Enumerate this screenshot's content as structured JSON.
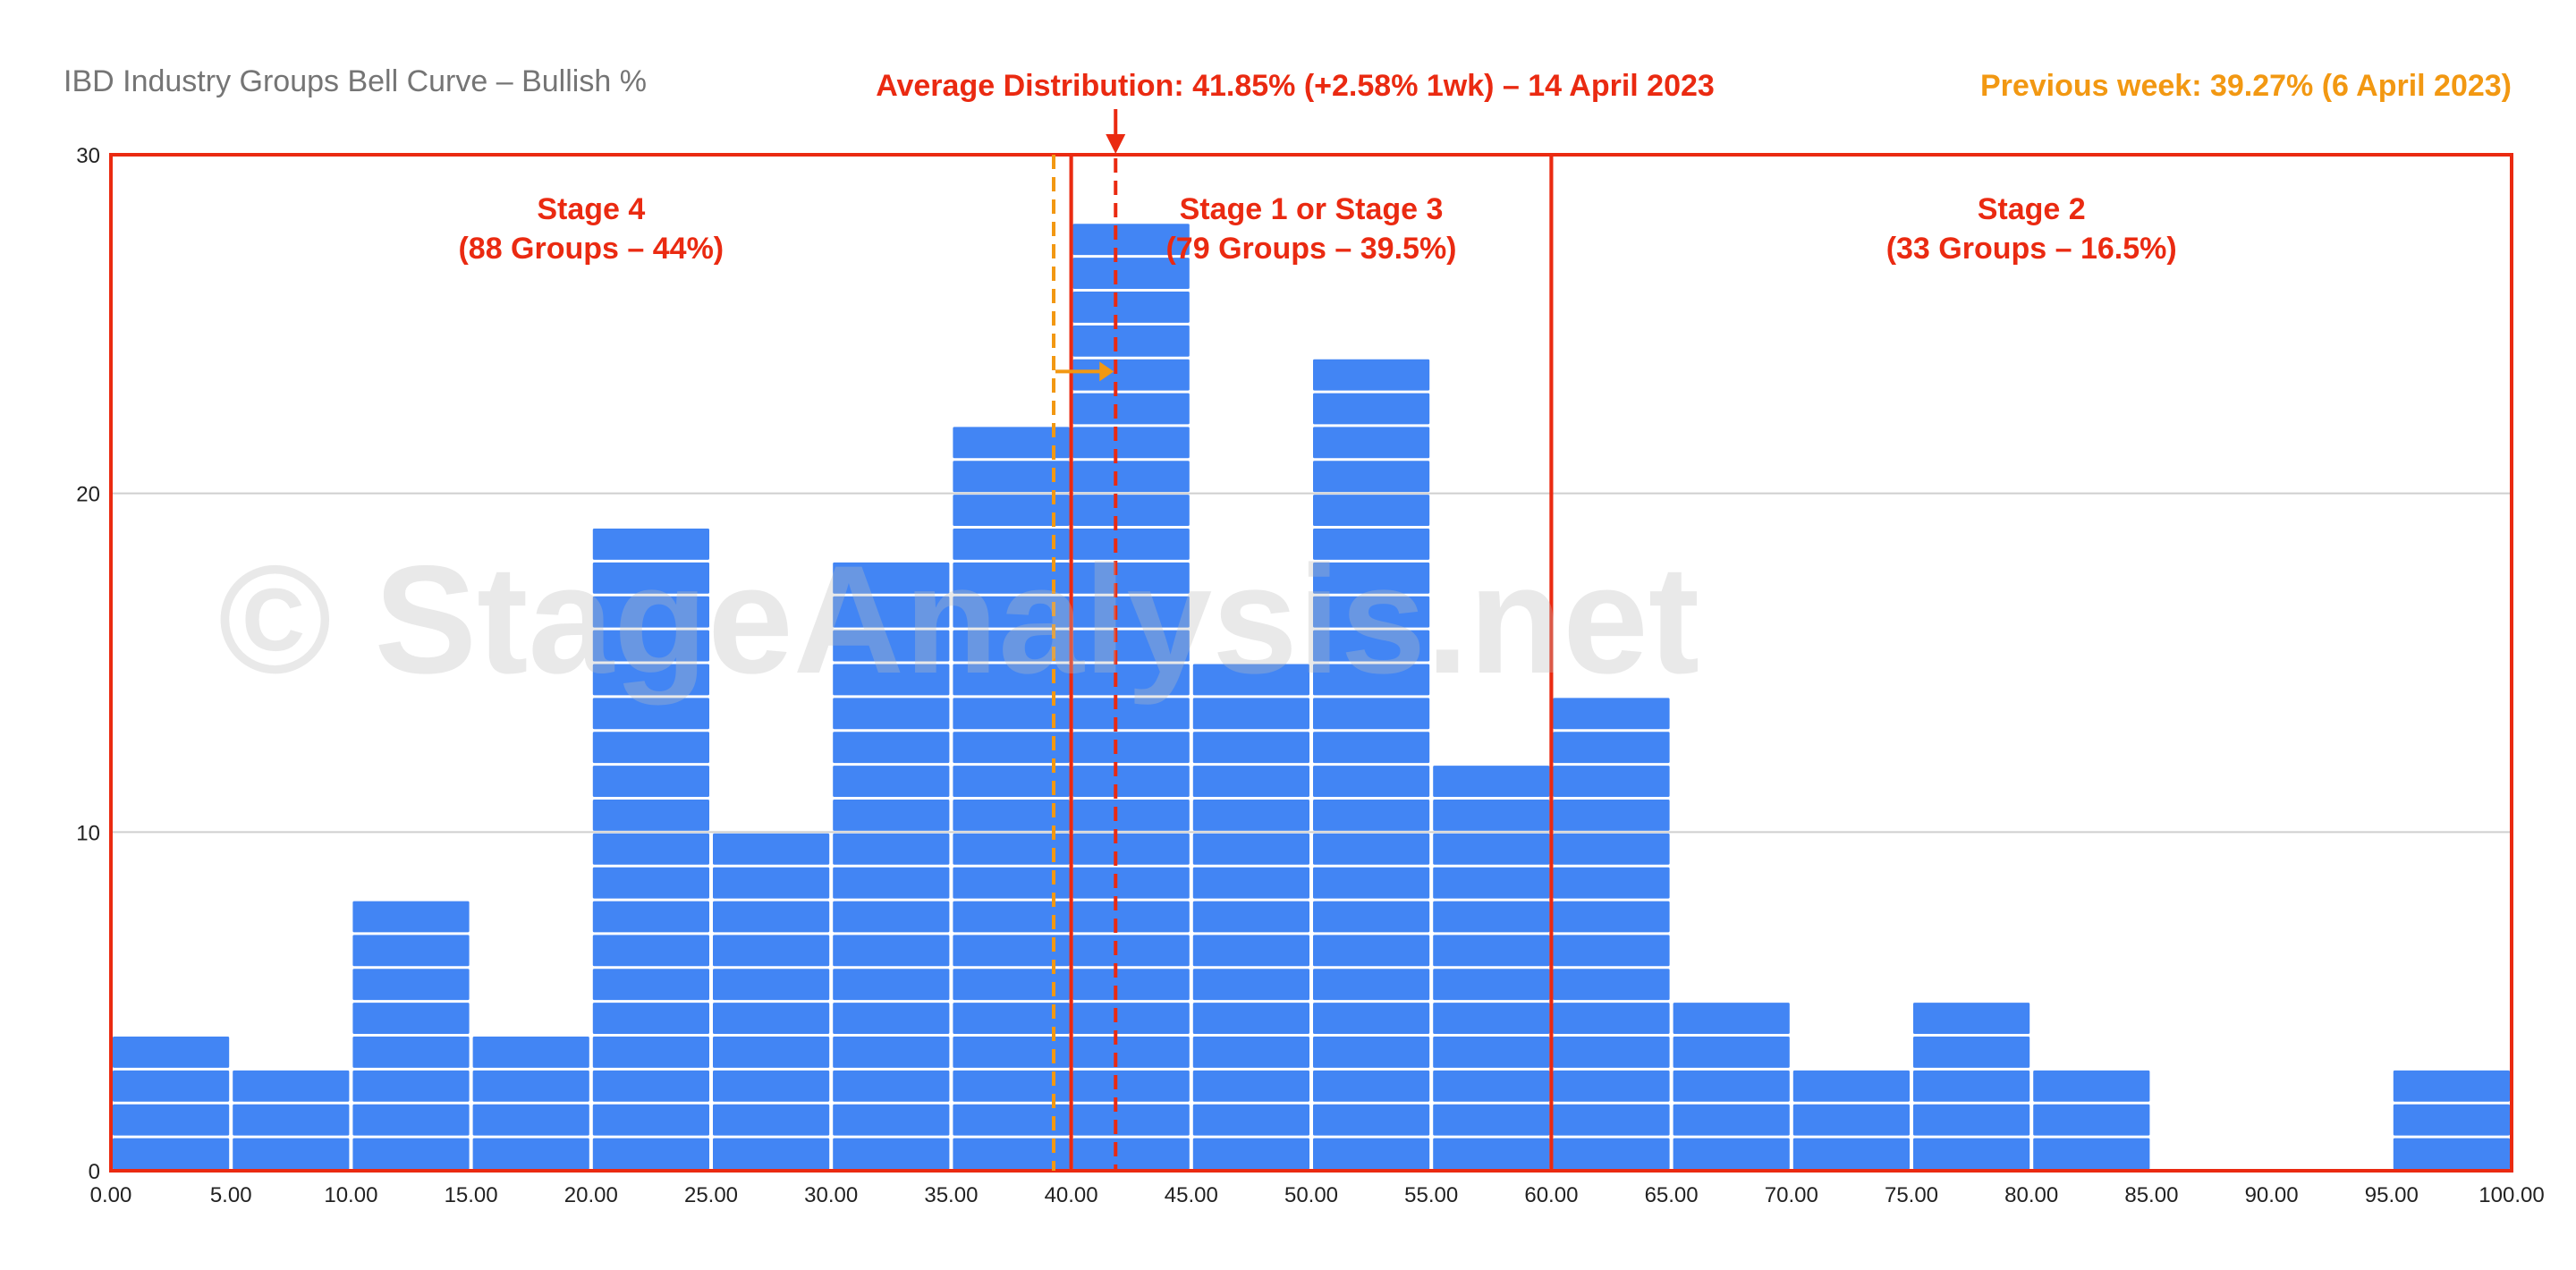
{
  "chart_data": {
    "type": "bar",
    "title": "IBD Industry Groups Bell Curve – Bullish %",
    "watermark": "© StageAnalysis.net",
    "bin_width": 5,
    "bins": [
      0,
      5,
      10,
      15,
      20,
      25,
      30,
      35,
      40,
      45,
      50,
      55,
      60,
      65,
      70,
      75,
      80,
      85,
      90,
      95
    ],
    "values": [
      4,
      3,
      8,
      4,
      19,
      10,
      18,
      22,
      28,
      15,
      24,
      12,
      14,
      5,
      3,
      5,
      3,
      0,
      0,
      3
    ],
    "bar_color": "#4285f4",
    "xlim": [
      0,
      100
    ],
    "ylim": [
      0,
      30
    ],
    "x_ticks": [
      "0.00",
      "5.00",
      "10.00",
      "15.00",
      "20.00",
      "25.00",
      "30.00",
      "35.00",
      "40.00",
      "45.00",
      "50.00",
      "55.00",
      "60.00",
      "65.00",
      "70.00",
      "75.00",
      "80.00",
      "85.00",
      "90.00",
      "95.00",
      "100.00"
    ],
    "y_ticks": [
      "0",
      "10",
      "20",
      "30"
    ],
    "grid": true,
    "average": {
      "label": "Average Distribution: 41.85% (+2.58% 1wk) – 14 April 2023",
      "value": 41.85,
      "color": "#ea2a11"
    },
    "previous": {
      "label": "Previous week: 39.27% (6 April 2023)",
      "value": 39.27,
      "color": "#f29812"
    },
    "stages": [
      {
        "from": 0,
        "to": 40,
        "name": "Stage 4",
        "detail": "(88 Groups – 44%)"
      },
      {
        "from": 40,
        "to": 60,
        "name": "Stage 1 or Stage 3",
        "detail": "(79 Groups – 39.5%)"
      },
      {
        "from": 60,
        "to": 100,
        "name": "Stage 2",
        "detail": "(33 Groups – 16.5%)"
      }
    ],
    "stage_color": "#ea2a11"
  }
}
